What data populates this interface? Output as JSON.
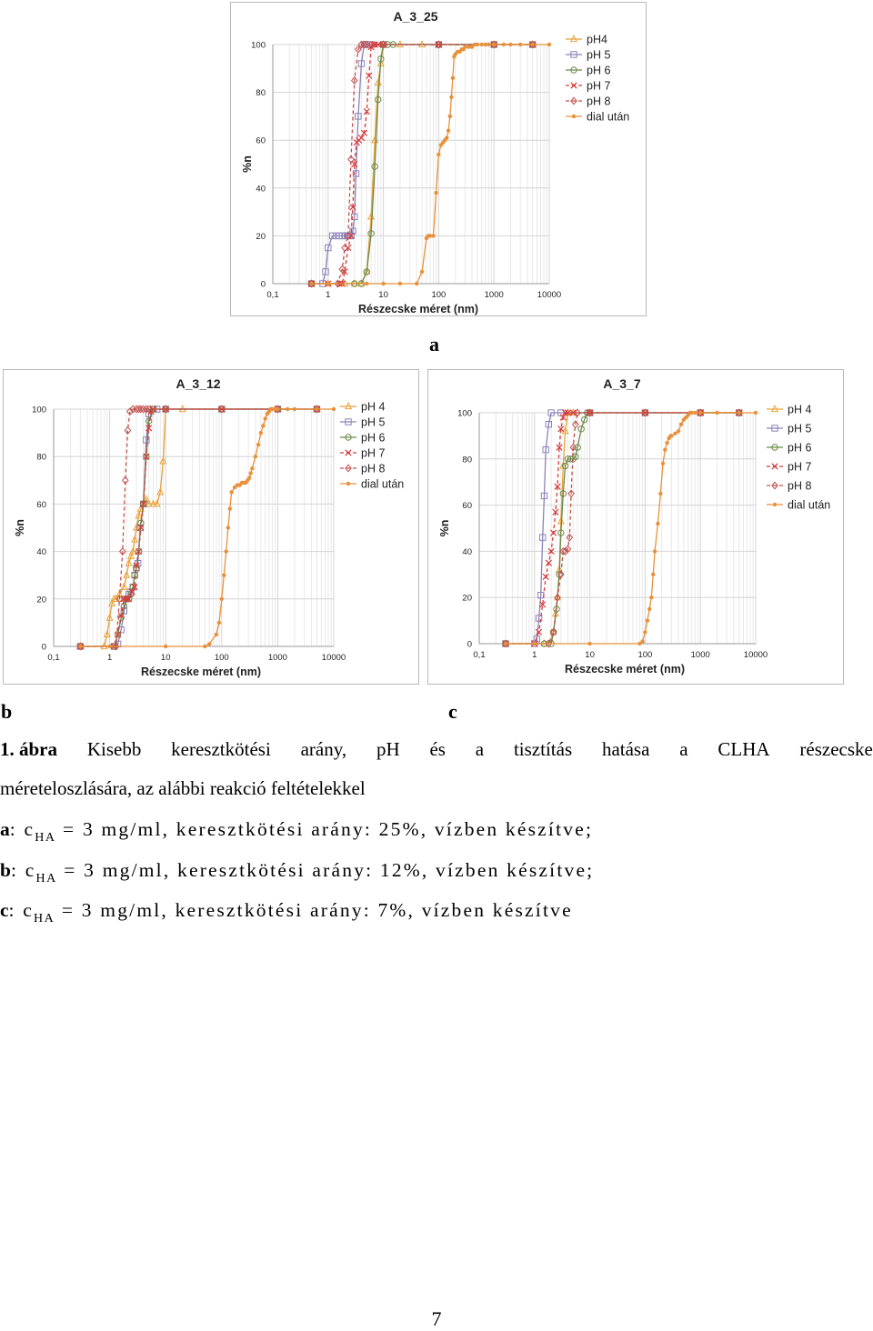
{
  "figure": {
    "panel_labels": {
      "a": "a",
      "b": "b",
      "c": "c"
    },
    "caption": {
      "number": "1. ábra",
      "words_line1": [
        "Kisebb",
        "keresztkötési",
        "arány,",
        "pH",
        "és",
        "a",
        "tisztítás",
        "hatása",
        "a",
        "CLHA",
        "részecske"
      ],
      "line2": "méreteloszlására, az alábbi reakció feltételekkel"
    },
    "conditions": [
      {
        "label": "a",
        "sep": ": c",
        "sub": "HA",
        "rest": " = 3 mg/ml, keresztkötési arány: 25%, vízben készítve;"
      },
      {
        "label": "b",
        "sep": ": c",
        "sub": "HA",
        "rest": " = 3 mg/ml, keresztkötési arány: 12%, vízben készítve;"
      },
      {
        "label": "c",
        "sep": ": c",
        "sub": "HA",
        "rest": " = 3 mg/ml, keresztkötési arány: 7%, vízben készítve"
      }
    ]
  },
  "page_number": "7",
  "colors": {
    "pH4": "#e8a23a",
    "pH5": "#8c82b8",
    "pH6": "#6e8a4a",
    "pH7": "#d83a3a",
    "pH8": "#c0504d",
    "dial": "#e8913a"
  },
  "chart_data": [
    {
      "id": "A_3_25",
      "type": "line",
      "title": "A_3_25",
      "xlabel": "Részecske méret (nm)",
      "ylabel": "%n",
      "x_scale": "log",
      "xlim": [
        0.1,
        10000
      ],
      "ylim": [
        0,
        100
      ],
      "x_ticks": [
        "0,1",
        "1",
        "10",
        "100",
        "1000",
        "10000"
      ],
      "y_ticks": [
        "0",
        "20",
        "40",
        "60",
        "80",
        "100"
      ],
      "grid": true,
      "legend_position": "right",
      "series": [
        {
          "name": "pH4",
          "marker": "triangle",
          "dashed": false,
          "x": [
            0.5,
            1,
            2,
            3,
            4,
            5,
            6,
            7,
            8,
            9,
            10,
            20,
            50,
            100,
            1000,
            5000
          ],
          "y": [
            0,
            0,
            0,
            0,
            0,
            5,
            28,
            60,
            84,
            92,
            100,
            100,
            100,
            100,
            100,
            100
          ]
        },
        {
          "name": "pH 5",
          "marker": "square",
          "dashed": false,
          "x": [
            0.5,
            0.8,
            0.9,
            1,
            1.2,
            1.4,
            1.6,
            1.8,
            2,
            2.2,
            2.4,
            2.6,
            2.8,
            3,
            3.2,
            3.5,
            4,
            4.5,
            5,
            6,
            10,
            100,
            1000,
            5000
          ],
          "y": [
            0,
            0,
            5,
            15,
            20,
            20,
            20,
            20,
            20,
            20,
            20,
            20,
            22,
            28,
            46,
            70,
            92,
            100,
            100,
            100,
            100,
            100,
            100,
            100
          ]
        },
        {
          "name": "pH 6",
          "marker": "circle",
          "dashed": false,
          "x": [
            0.5,
            3,
            4,
            5,
            6,
            7,
            8,
            9,
            10,
            12,
            15,
            100,
            1000,
            5000
          ],
          "y": [
            0,
            0,
            0,
            5,
            21,
            49,
            77,
            94,
            100,
            100,
            100,
            100,
            100,
            100
          ]
        },
        {
          "name": "pH 7",
          "marker": "x",
          "dashed": true,
          "x": [
            0.5,
            1,
            1.6,
            1.8,
            2,
            2.3,
            2.6,
            2.8,
            3,
            3.3,
            3.6,
            4,
            4.5,
            5,
            5.5,
            6,
            6.5,
            7,
            8,
            10,
            100,
            1000,
            5000
          ],
          "y": [
            0,
            0,
            0,
            0,
            5,
            15,
            20,
            32,
            50,
            59,
            60,
            61,
            63,
            72,
            87,
            99,
            100,
            100,
            100,
            100,
            100,
            100,
            100
          ]
        },
        {
          "name": "pH 8",
          "marker": "diamond",
          "dashed": true,
          "x": [
            0.5,
            1.5,
            1.8,
            2,
            2.3,
            2.6,
            3,
            3.5,
            4,
            4.5,
            5,
            10,
            100,
            1000,
            5000
          ],
          "y": [
            0,
            0,
            6,
            15,
            20,
            52,
            85,
            98,
            100,
            100,
            100,
            100,
            100,
            100,
            100
          ]
        },
        {
          "name": "dial után",
          "marker": "dot",
          "dashed": false,
          "x": [
            0.5,
            1,
            5,
            10,
            20,
            40,
            50,
            60,
            65,
            70,
            80,
            90,
            100,
            110,
            120,
            130,
            140,
            150,
            160,
            170,
            180,
            190,
            200,
            220,
            240,
            260,
            280,
            300,
            350,
            400,
            450,
            500,
            600,
            700,
            800,
            1000,
            1500,
            2000,
            3000,
            5000,
            10000
          ],
          "y": [
            0,
            0,
            0,
            0,
            0,
            0,
            5,
            19,
            20,
            20,
            20,
            38,
            54,
            58,
            59,
            60,
            61,
            64,
            70,
            78,
            86,
            95,
            96,
            97,
            97,
            98,
            98,
            99,
            99,
            99,
            100,
            100,
            100,
            100,
            100,
            100,
            100,
            100,
            100,
            100,
            100
          ]
        }
      ]
    },
    {
      "id": "A_3_12",
      "type": "line",
      "title": "A_3_12",
      "xlabel": "Részecske méret (nm)",
      "ylabel": "%n",
      "x_scale": "log",
      "xlim": [
        0.1,
        10000
      ],
      "ylim": [
        0,
        100
      ],
      "x_ticks": [
        "0,1",
        "1",
        "10",
        "100",
        "1000",
        "10000"
      ],
      "y_ticks": [
        "0",
        "20",
        "40",
        "60",
        "80",
        "100"
      ],
      "grid": true,
      "legend_position": "right",
      "series": [
        {
          "name": "pH 4",
          "marker": "triangle",
          "dashed": false,
          "x": [
            0.3,
            0.8,
            0.9,
            1,
            1.1,
            1.2,
            1.3,
            1.5,
            1.8,
            2,
            2.2,
            2.4,
            2.6,
            2.8,
            3,
            3.3,
            3.6,
            4,
            4.5,
            5,
            6,
            7,
            8,
            9,
            10,
            20,
            100,
            1000,
            5000
          ],
          "y": [
            0,
            0,
            5,
            12,
            18,
            20,
            20,
            22,
            25,
            30,
            35,
            38,
            40,
            45,
            50,
            55,
            58,
            60,
            62,
            60,
            60,
            60,
            65,
            78,
            100,
            100,
            100,
            100,
            100
          ]
        },
        {
          "name": "pH 5",
          "marker": "square",
          "dashed": false,
          "x": [
            0.3,
            1.2,
            1.4,
            1.6,
            1.8,
            2,
            2.2,
            2.4,
            2.6,
            2.8,
            3,
            3.2,
            3.5,
            4,
            4.5,
            5,
            6,
            7,
            10,
            100,
            1000,
            5000
          ],
          "y": [
            0,
            0,
            1,
            7,
            15,
            20,
            22,
            23,
            25,
            30,
            33,
            35,
            50,
            60,
            87,
            98,
            100,
            100,
            100,
            100,
            100,
            100
          ]
        },
        {
          "name": "pH 6",
          "marker": "circle",
          "dashed": false,
          "x": [
            0.3,
            1.2,
            1.4,
            1.6,
            1.8,
            2,
            2.2,
            2.4,
            2.6,
            2.8,
            3,
            3.3,
            3.6,
            4,
            4.5,
            5,
            6,
            10,
            100,
            1000,
            5000
          ],
          "y": [
            0,
            0,
            5,
            12,
            17,
            20,
            20,
            22,
            25,
            30,
            33,
            40,
            52,
            60,
            80,
            95,
            100,
            100,
            100,
            100,
            100
          ]
        },
        {
          "name": "pH 7",
          "marker": "x",
          "dashed": true,
          "x": [
            0.3,
            1.2,
            1.4,
            1.6,
            1.8,
            2,
            2.2,
            2.5,
            2.8,
            3,
            3.3,
            3.6,
            4,
            4.5,
            5,
            5.5,
            6,
            10,
            100,
            1000,
            5000
          ],
          "y": [
            0,
            0,
            5,
            13,
            20,
            20,
            20,
            23,
            25,
            34,
            40,
            50,
            60,
            80,
            92,
            99,
            100,
            100,
            100,
            100,
            100
          ]
        },
        {
          "name": "pH 8",
          "marker": "diamond",
          "dashed": true,
          "x": [
            0.3,
            1.3,
            1.5,
            1.7,
            1.9,
            2.1,
            2.3,
            2.6,
            3,
            3.3,
            3.6,
            4,
            4.5,
            5,
            10,
            100,
            1000,
            5000
          ],
          "y": [
            0,
            0,
            20,
            40,
            70,
            91,
            99,
            100,
            100,
            100,
            100,
            100,
            100,
            100,
            100,
            100,
            100,
            100
          ]
        },
        {
          "name": "dial után",
          "marker": "dot",
          "dashed": false,
          "x": [
            0.3,
            1,
            10,
            50,
            60,
            80,
            90,
            100,
            110,
            120,
            130,
            140,
            150,
            170,
            190,
            210,
            230,
            250,
            270,
            290,
            310,
            330,
            350,
            400,
            450,
            500,
            550,
            600,
            650,
            700,
            750,
            800,
            900,
            1000,
            1500,
            2000,
            5000,
            10000
          ],
          "y": [
            0,
            0,
            0,
            0,
            1,
            5,
            10,
            20,
            30,
            40,
            50,
            58,
            65,
            67,
            68,
            68,
            69,
            69,
            69,
            70,
            71,
            73,
            75,
            80,
            85,
            90,
            93,
            96,
            98,
            99,
            100,
            100,
            100,
            100,
            100,
            100,
            100,
            100
          ]
        }
      ]
    },
    {
      "id": "A_3_7",
      "type": "line",
      "title": "A_3_7",
      "xlabel": "Részecske méret (nm)",
      "ylabel": "%n",
      "x_scale": "log",
      "xlim": [
        0.1,
        10000
      ],
      "ylim": [
        0,
        100
      ],
      "x_ticks": [
        "0,1",
        "1",
        "10",
        "100",
        "1000",
        "10000"
      ],
      "y_ticks": [
        "0",
        "20",
        "40",
        "60",
        "80",
        "100"
      ],
      "grid": true,
      "legend_position": "right",
      "series": [
        {
          "name": "pH 4",
          "marker": "triangle",
          "dashed": false,
          "x": [
            0.3,
            1.5,
            2,
            2.2,
            2.4,
            2.6,
            2.8,
            3,
            3.3,
            3.6,
            4,
            5,
            10,
            100,
            1000,
            5000
          ],
          "y": [
            0,
            0,
            1,
            5,
            13,
            20,
            32,
            53,
            77,
            92,
            100,
            100,
            100,
            100,
            100,
            100
          ]
        },
        {
          "name": "pH 5",
          "marker": "square",
          "dashed": false,
          "x": [
            0.3,
            1,
            1.1,
            1.2,
            1.3,
            1.4,
            1.5,
            1.6,
            1.8,
            2,
            3,
            10,
            100,
            1000,
            5000
          ],
          "y": [
            0,
            0,
            2,
            11,
            21,
            46,
            64,
            84,
            95,
            100,
            100,
            100,
            100,
            100,
            100
          ]
        },
        {
          "name": "pH 6",
          "marker": "circle",
          "dashed": false,
          "x": [
            0.3,
            1.5,
            2,
            2.2,
            2.5,
            2.8,
            3,
            3.3,
            3.6,
            4,
            4.5,
            5,
            5.5,
            6,
            7,
            8,
            9,
            10,
            100,
            1000,
            5000
          ],
          "y": [
            0,
            0,
            0,
            5,
            15,
            30,
            48,
            65,
            77,
            80,
            80,
            80,
            81,
            85,
            93,
            97,
            100,
            100,
            100,
            100,
            100
          ]
        },
        {
          "name": "pH 7",
          "marker": "x",
          "dashed": true,
          "x": [
            0.3,
            1,
            1.2,
            1.4,
            1.6,
            1.8,
            2,
            2.2,
            2.4,
            2.6,
            2.8,
            3,
            3.3,
            3.6,
            4,
            5,
            10,
            100,
            1000,
            5000
          ],
          "y": [
            0,
            0,
            5,
            17,
            29,
            35,
            40,
            48,
            57,
            68,
            85,
            93,
            98,
            100,
            100,
            100,
            100,
            100,
            100,
            100
          ]
        },
        {
          "name": "pH 8",
          "marker": "diamond",
          "dashed": true,
          "x": [
            0.3,
            1.8,
            2.2,
            2.6,
            3,
            3.3,
            3.6,
            4,
            4.3,
            4.6,
            5,
            5.5,
            6,
            10,
            100,
            1000,
            5000
          ],
          "y": [
            0,
            0,
            5,
            20,
            30,
            40,
            40,
            41,
            46,
            65,
            85,
            95,
            100,
            100,
            100,
            100,
            100
          ]
        },
        {
          "name": "dial után",
          "marker": "dot",
          "dashed": false,
          "x": [
            0.3,
            1,
            10,
            80,
            90,
            100,
            110,
            120,
            130,
            140,
            150,
            170,
            190,
            210,
            230,
            250,
            270,
            290,
            300,
            350,
            400,
            450,
            500,
            550,
            600,
            650,
            700,
            800,
            1000,
            2000,
            5000,
            10000
          ],
          "y": [
            0,
            0,
            0,
            0,
            1,
            5,
            10,
            15,
            20,
            30,
            40,
            52,
            65,
            78,
            84,
            87,
            89,
            90,
            90,
            91,
            92,
            95,
            97,
            98,
            99,
            100,
            100,
            100,
            100,
            100,
            100,
            100
          ]
        }
      ]
    }
  ]
}
